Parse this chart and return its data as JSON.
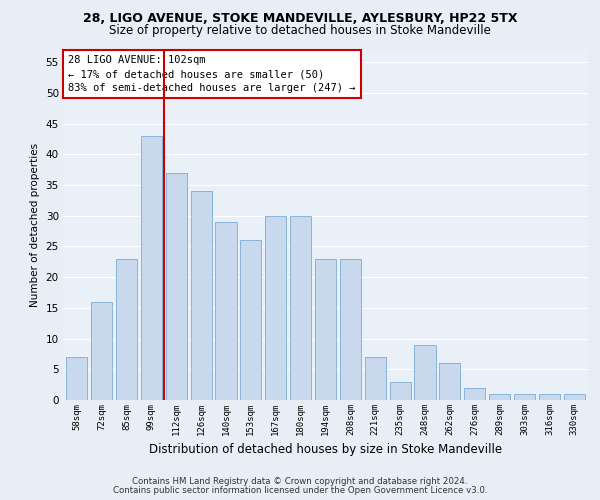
{
  "title1": "28, LIGO AVENUE, STOKE MANDEVILLE, AYLESBURY, HP22 5TX",
  "title2": "Size of property relative to detached houses in Stoke Mandeville",
  "xlabel": "Distribution of detached houses by size in Stoke Mandeville",
  "ylabel": "Number of detached properties",
  "categories": [
    "58sqm",
    "72sqm",
    "85sqm",
    "99sqm",
    "112sqm",
    "126sqm",
    "140sqm",
    "153sqm",
    "167sqm",
    "180sqm",
    "194sqm",
    "208sqm",
    "221sqm",
    "235sqm",
    "248sqm",
    "262sqm",
    "276sqm",
    "289sqm",
    "303sqm",
    "316sqm",
    "330sqm"
  ],
  "values": [
    7,
    16,
    23,
    43,
    37,
    34,
    29,
    26,
    30,
    30,
    23,
    23,
    7,
    3,
    9,
    6,
    2,
    1,
    1,
    1,
    1
  ],
  "bar_color": "#c9d9ed",
  "bar_edge_color": "#7bacd4",
  "vline_x": 3.5,
  "vline_color": "#cc0000",
  "annotation_text": "28 LIGO AVENUE: 102sqm\n← 17% of detached houses are smaller (50)\n83% of semi-detached houses are larger (247) →",
  "annotation_box_color": "#ffffff",
  "annotation_box_edge": "#cc0000",
  "ylim": [
    0,
    57
  ],
  "yticks": [
    0,
    5,
    10,
    15,
    20,
    25,
    30,
    35,
    40,
    45,
    50,
    55
  ],
  "bg_color": "#e8eef5",
  "plot_bg_color": "#eaf0f8",
  "grid_color": "#ffffff",
  "footer1": "Contains HM Land Registry data © Crown copyright and database right 2024.",
  "footer2": "Contains public sector information licensed under the Open Government Licence v3.0."
}
